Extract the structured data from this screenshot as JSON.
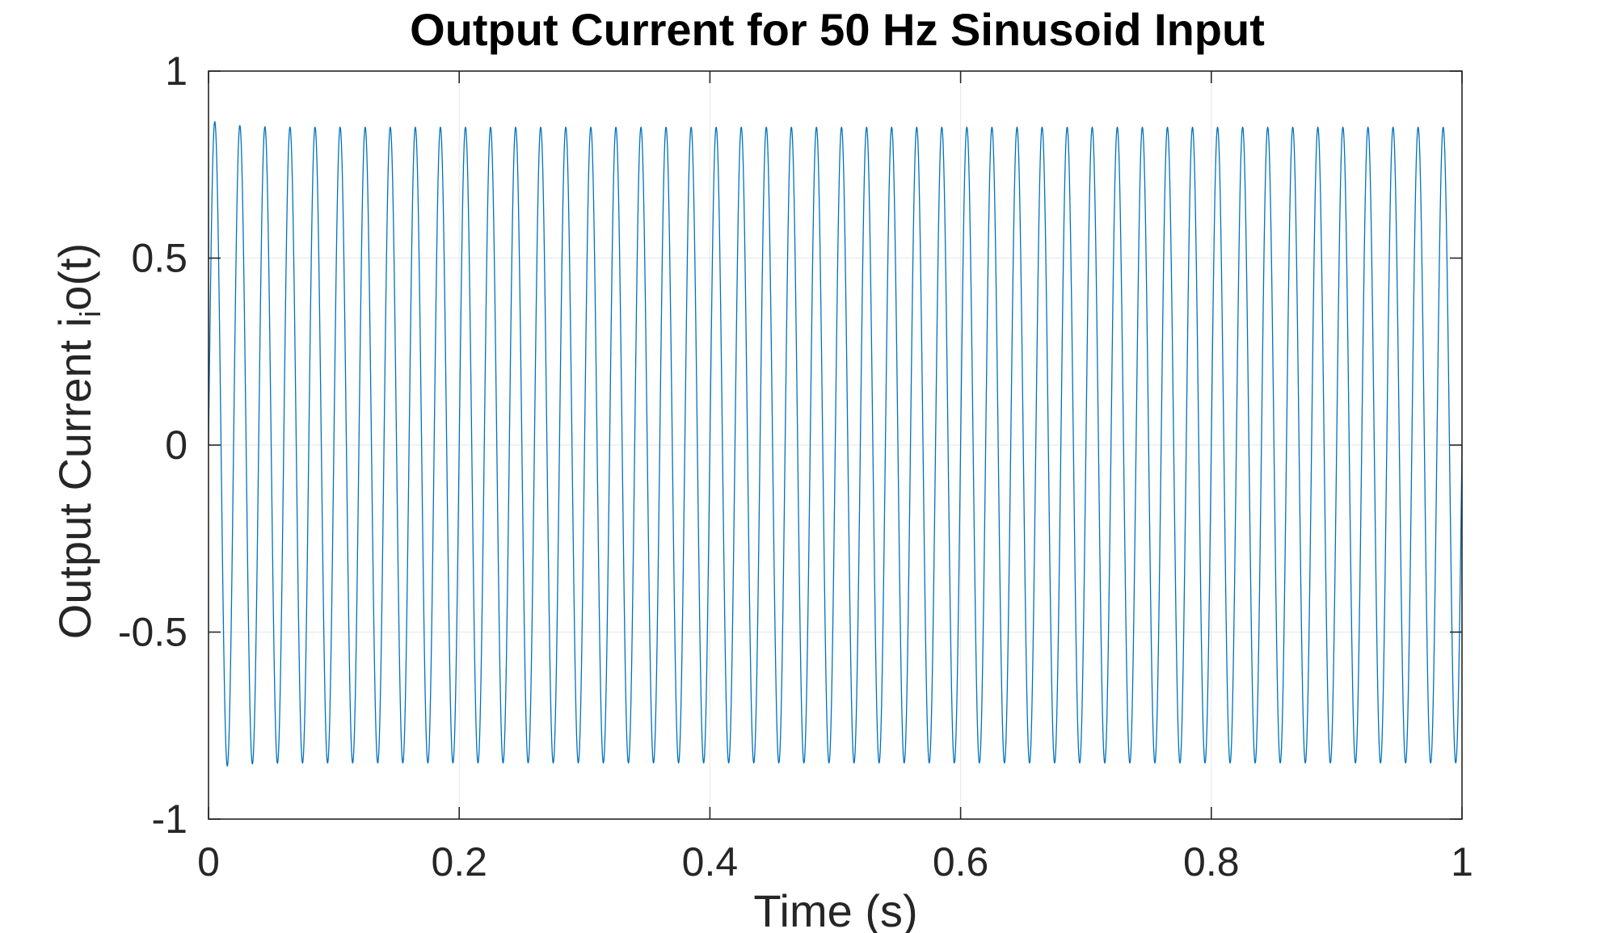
{
  "chart_data": {
    "type": "line",
    "title": "Output Current for 50 Hz Sinusoid Input",
    "xlabel": "Time (s)",
    "ylabel_main": "Output Current i",
    "ylabel_sub": "i",
    "ylabel_tail": "o(t)",
    "xlim": [
      0,
      1
    ],
    "ylim": [
      -1,
      1
    ],
    "xticks": [
      0,
      0.2,
      0.4,
      0.6,
      0.8,
      1
    ],
    "xtick_labels": [
      "0",
      "0.2",
      "0.4",
      "0.6",
      "0.8",
      "1"
    ],
    "yticks": [
      -1,
      -0.5,
      0,
      0.5,
      1
    ],
    "ytick_labels": [
      "-1",
      "-0.5",
      "0",
      "0.5",
      "1"
    ],
    "grid": true,
    "series": [
      {
        "frequency_hz": 50,
        "steady_amplitude": 0.85,
        "first_peak": 0.87,
        "duration_s": 1,
        "color": "#0072bd"
      }
    ]
  }
}
